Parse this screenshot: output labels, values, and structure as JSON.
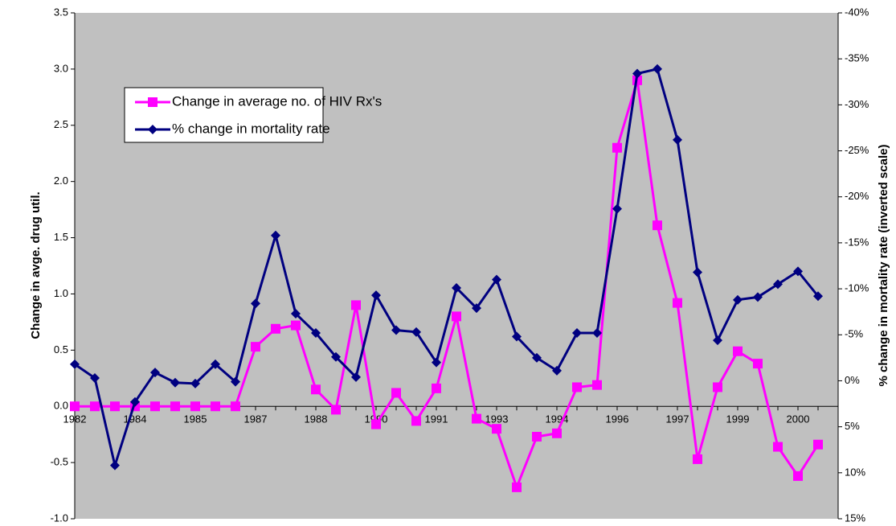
{
  "chart_data": {
    "type": "line",
    "categories": [
      "1982",
      null,
      null,
      "1984",
      null,
      null,
      "1985",
      null,
      null,
      "1987",
      null,
      null,
      "1988",
      null,
      null,
      "1990",
      null,
      null,
      "1991",
      null,
      null,
      "1993",
      null,
      null,
      "1994",
      null,
      null,
      "1996",
      null,
      null,
      "1997",
      null,
      null,
      "1999",
      null,
      null,
      "2000",
      null
    ],
    "series": [
      {
        "name": "Change in average no. of HIV Rx's",
        "color": "#ff00ff",
        "marker": "square",
        "values": [
          0,
          0,
          0,
          0,
          0,
          0,
          0,
          0,
          0,
          0.53,
          0.69,
          0.72,
          0.15,
          -0.03,
          0.9,
          -0.16,
          0.12,
          -0.13,
          0.16,
          0.8,
          -0.11,
          -0.2,
          -0.72,
          -0.27,
          -0.24,
          0.17,
          0.19,
          2.3,
          2.9,
          1.61,
          0.92,
          -0.47,
          0.17,
          0.49,
          0.38,
          -0.36,
          -0.62,
          -0.34
        ]
      },
      {
        "name": "% change in mortality rate",
        "color": "#000080",
        "marker": "diamond",
        "axis": "y2",
        "values": [
          -1.8,
          -0.3,
          9.2,
          2.3,
          -0.9,
          0.2,
          0.3,
          -1.8,
          0.1,
          -8.4,
          -15.8,
          -7.3,
          -5.2,
          -2.6,
          -0.4,
          -9.3,
          -5.5,
          -5.3,
          -2.0,
          -10.1,
          -7.9,
          -11.0,
          -4.8,
          -2.5,
          -1.1,
          -5.2,
          -5.2,
          -18.7,
          -33.4,
          -33.9,
          -26.2,
          -11.8,
          -4.4,
          -8.8,
          -9.1,
          -10.5,
          -11.9,
          -9.2
        ]
      }
    ],
    "ylabel": "Change in avge. drug util.",
    "y2label": "% change in mortality rate (inverted scale)",
    "ylim": [
      -1.0,
      3.5
    ],
    "yticks": [
      {
        "value": -1,
        "label": "-1.0"
      },
      -0.5,
      {
        "value": 0,
        "label": "0.0"
      },
      0.5,
      {
        "value": 1,
        "label": "1.0"
      },
      1.5,
      {
        "value": 2,
        "label": "2.0"
      },
      2.5,
      {
        "value": 3,
        "label": "3.0"
      },
      3.5
    ],
    "y2lim": [
      -40,
      15
    ],
    "y2_inverted": true,
    "y2ticks": [
      {
        "value": -40,
        "label": "-40%"
      },
      {
        "value": -35,
        "label": "-35%"
      },
      {
        "value": -30,
        "label": "-30%"
      },
      {
        "value": -25,
        "label": "-25%"
      },
      {
        "value": -20,
        "label": "-20%"
      },
      {
        "value": -15,
        "label": "-15%"
      },
      {
        "value": -10,
        "label": "-10%"
      },
      {
        "value": -5,
        "label": "-5%"
      },
      {
        "value": 0,
        "label": "0%"
      },
      {
        "value": 5,
        "label": "5%"
      },
      {
        "value": 10,
        "label": "10%"
      },
      {
        "value": 15,
        "label": "15%"
      }
    ],
    "legend": "upper left",
    "plot_background": "#c0c0c0"
  }
}
